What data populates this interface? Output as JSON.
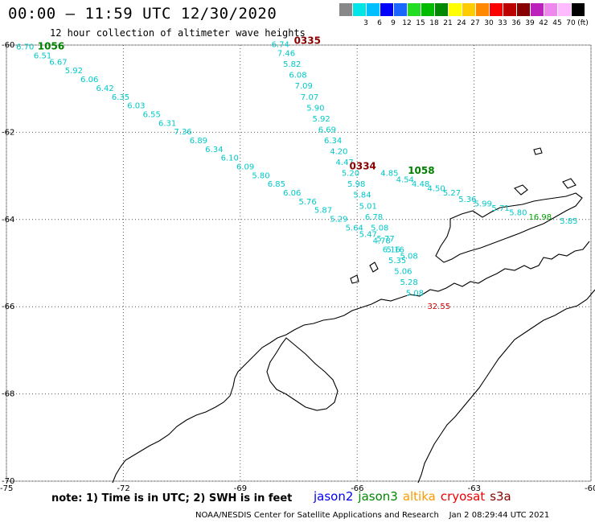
{
  "header": {
    "title": "00:00 – 11:59 UTC 12/30/2020",
    "subtitle": "12 hour collection of altimeter wave heights"
  },
  "scale": {
    "unit": "(ft)",
    "bins": [
      {
        "color": "#888888",
        "label": ""
      },
      {
        "color": "#00e5e5",
        "label": "3"
      },
      {
        "color": "#00bfff",
        "label": "6"
      },
      {
        "color": "#0000ff",
        "label": "9"
      },
      {
        "color": "#1a66ff",
        "label": "12"
      },
      {
        "color": "#22dd22",
        "label": "15"
      },
      {
        "color": "#00bb00",
        "label": "18"
      },
      {
        "color": "#008800",
        "label": "21"
      },
      {
        "color": "#ffff00",
        "label": "24"
      },
      {
        "color": "#ffcc00",
        "label": "27"
      },
      {
        "color": "#ff8800",
        "label": "30"
      },
      {
        "color": "#ff0000",
        "label": "33"
      },
      {
        "color": "#bb0000",
        "label": "36"
      },
      {
        "color": "#880000",
        "label": "39"
      },
      {
        "color": "#bb22bb",
        "label": "42"
      },
      {
        "color": "#ee88ee",
        "label": "45"
      },
      {
        "color": "#ffbbff",
        "label": "70"
      },
      {
        "color": "#000000",
        "label": ""
      }
    ]
  },
  "map": {
    "lon_range": [
      -75,
      -60
    ],
    "lat_range": [
      -70,
      -60
    ],
    "lat_ticks": [
      {
        "value": -60,
        "label": "-60"
      },
      {
        "value": -62,
        "label": "-62"
      },
      {
        "value": -64,
        "label": "-64"
      },
      {
        "value": -66,
        "label": "-66"
      },
      {
        "value": -68,
        "label": "-68"
      },
      {
        "value": -70,
        "label": "-70"
      }
    ],
    "lon_ticks": [
      {
        "value": -75,
        "label": "-75"
      },
      {
        "value": -72,
        "label": "-72"
      },
      {
        "value": -69,
        "label": "-69"
      },
      {
        "value": -66,
        "label": "-66"
      },
      {
        "value": -63,
        "label": "-63"
      },
      {
        "value": -60,
        "label": "-60"
      }
    ],
    "colors": {
      "cyan": "#00c8c8",
      "green": "#00a000",
      "dark_green": "#008000",
      "dark_red": "#880000",
      "red": "#cc0000",
      "coast": "#000000",
      "grid": "#555555"
    }
  },
  "chart_data": {
    "type": "scatter",
    "series": [
      {
        "name": "1056",
        "pass_label": "1056",
        "points": [
          {
            "lon": -74.75,
            "lat": -60.1,
            "label": "6.70"
          },
          {
            "lon": -74.3,
            "lat": -60.3,
            "label": "6.51"
          },
          {
            "lon": -73.9,
            "lat": -60.45,
            "label": "6.67"
          },
          {
            "lon": -73.5,
            "lat": -60.65,
            "label": "5.92"
          },
          {
            "lon": -73.1,
            "lat": -60.85,
            "label": "6.06"
          },
          {
            "lon": -72.7,
            "lat": -61.05,
            "label": "6.42"
          },
          {
            "lon": -72.3,
            "lat": -61.25,
            "label": "6.35"
          },
          {
            "lon": -71.9,
            "lat": -61.45,
            "label": "6.03"
          },
          {
            "lon": -71.5,
            "lat": -61.65,
            "label": "6.55"
          },
          {
            "lon": -71.1,
            "lat": -61.85,
            "label": "6.31"
          },
          {
            "lon": -70.7,
            "lat": -62.05,
            "label": "7.36"
          },
          {
            "lon": -70.3,
            "lat": -62.25,
            "label": "6.89"
          },
          {
            "lon": -69.9,
            "lat": -62.45,
            "label": "6.34"
          },
          {
            "lon": -69.5,
            "lat": -62.65,
            "label": "6.10"
          },
          {
            "lon": -69.1,
            "lat": -62.85,
            "label": "6.09"
          },
          {
            "lon": -68.7,
            "lat": -63.05,
            "label": "5.80"
          },
          {
            "lon": -68.3,
            "lat": -63.25,
            "label": "6.85"
          },
          {
            "lon": -67.9,
            "lat": -63.45,
            "label": "6.06"
          },
          {
            "lon": -67.5,
            "lat": -63.65,
            "label": "5.76"
          },
          {
            "lon": -67.1,
            "lat": -63.85,
            "label": "5.87"
          },
          {
            "lon": -66.7,
            "lat": -64.05,
            "label": "5.29"
          },
          {
            "lon": -66.3,
            "lat": -64.25,
            "label": "5.64"
          },
          {
            "lon": -65.95,
            "lat": -64.4,
            "label": "5.47"
          },
          {
            "lon": -65.6,
            "lat": -64.55,
            "label": "4.78"
          },
          {
            "lon": -65.25,
            "lat": -64.75,
            "label": "5.16"
          },
          {
            "lon": -64.9,
            "lat": -64.9,
            "label": "5.08"
          }
        ]
      },
      {
        "name": "0335",
        "pass_label": "0335",
        "points": [
          {
            "lon": -68.2,
            "lat": -60.05,
            "label": "6.74"
          },
          {
            "lon": -68.05,
            "lat": -60.25,
            "label": "7.46"
          },
          {
            "lon": -67.9,
            "lat": -60.5,
            "label": "5.82"
          },
          {
            "lon": -67.75,
            "lat": -60.75,
            "label": "6.08"
          },
          {
            "lon": -67.6,
            "lat": -61.0,
            "label": "7.09"
          },
          {
            "lon": -67.45,
            "lat": -61.25,
            "label": "7.07"
          },
          {
            "lon": -67.3,
            "lat": -61.5,
            "label": "5.90"
          },
          {
            "lon": -67.15,
            "lat": -61.75,
            "label": "5.92"
          },
          {
            "lon": -67.0,
            "lat": -62.0,
            "label": "6.69"
          },
          {
            "lon": -66.85,
            "lat": -62.25,
            "label": "6.34"
          },
          {
            "lon": -66.7,
            "lat": -62.5,
            "label": "4.20"
          },
          {
            "lon": -66.55,
            "lat": -62.75,
            "label": "4.47"
          },
          {
            "lon": -66.4,
            "lat": -63.0,
            "label": "5.20"
          },
          {
            "lon": -66.25,
            "lat": -63.25,
            "label": "5.98"
          },
          {
            "lon": -66.1,
            "lat": -63.5,
            "label": "5.84"
          },
          {
            "lon": -65.95,
            "lat": -63.75,
            "label": "5.01"
          },
          {
            "lon": -65.8,
            "lat": -64.0,
            "label": "6.78"
          },
          {
            "lon": -65.65,
            "lat": -64.25,
            "label": "5.08"
          },
          {
            "lon": -65.5,
            "lat": -64.5,
            "label": "5.77"
          },
          {
            "lon": -65.35,
            "lat": -64.75,
            "label": "6.16"
          },
          {
            "lon": -65.2,
            "lat": -65.0,
            "label": "5.35"
          },
          {
            "lon": -65.05,
            "lat": -65.25,
            "label": "5.06"
          },
          {
            "lon": -64.9,
            "lat": -65.5,
            "label": "5.28"
          },
          {
            "lon": -64.75,
            "lat": -65.75,
            "label": "5.08"
          }
        ]
      },
      {
        "name": "0334",
        "pass_label": "0334",
        "points": [
          {
            "lon": -64.2,
            "lat": -66.05,
            "label": "32.55"
          }
        ]
      },
      {
        "name": "1058",
        "pass_label": "1058",
        "points": [
          {
            "lon": -65.4,
            "lat": -63.0,
            "label": "4.85"
          },
          {
            "lon": -65.0,
            "lat": -63.15,
            "label": "4.54"
          },
          {
            "lon": -64.6,
            "lat": -63.25,
            "label": "4.48"
          },
          {
            "lon": -64.2,
            "lat": -63.35,
            "label": "4.50"
          },
          {
            "lon": -63.8,
            "lat": -63.45,
            "label": "5.27"
          },
          {
            "lon": -63.4,
            "lat": -63.6,
            "label": "5.36"
          },
          {
            "lon": -63.0,
            "lat": -63.7,
            "label": "5.99"
          },
          {
            "lon": -62.55,
            "lat": -63.8,
            "label": "5.71"
          },
          {
            "lon": -62.1,
            "lat": -63.9,
            "label": "5.80"
          },
          {
            "lon": -61.6,
            "lat": -64.0,
            "label": "16.98"
          },
          {
            "lon": -60.8,
            "lat": -64.1,
            "label": "5.85"
          }
        ]
      }
    ]
  },
  "footer": {
    "note": "note: 1) Time is in UTC; 2) SWH is in feet",
    "satellites": [
      {
        "name": "jason2",
        "color": "#0000ee"
      },
      {
        "name": "jason3",
        "color": "#008800"
      },
      {
        "name": "altika",
        "color": "#ff9900"
      },
      {
        "name": "cryosat",
        "color": "#ee0000"
      },
      {
        "name": "s3a",
        "color": "#880000"
      }
    ],
    "credit": "NOAA/NESDIS Center for Satellite Applications and Research",
    "timestamp": "Jan  2 08:29:44 UTC 2021"
  }
}
